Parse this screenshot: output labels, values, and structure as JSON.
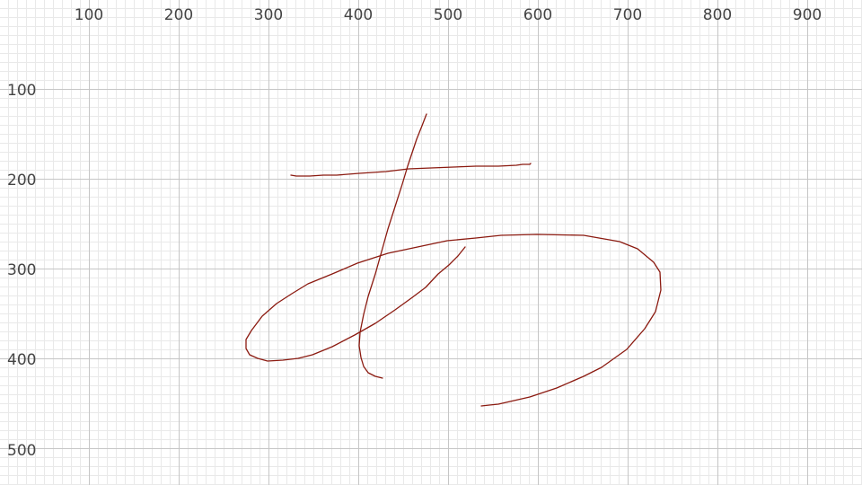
{
  "axes": {
    "x_labels": [
      "100",
      "200",
      "300",
      "400",
      "500",
      "600",
      "700",
      "800",
      "900"
    ],
    "y_labels": [
      "100",
      "200",
      "300",
      "400",
      "500"
    ]
  },
  "colors": {
    "background": "#ffffff",
    "minor_grid": "#e9e9e9",
    "major_grid": "#c6c6c6",
    "stroke": "#8b1a10"
  }
}
